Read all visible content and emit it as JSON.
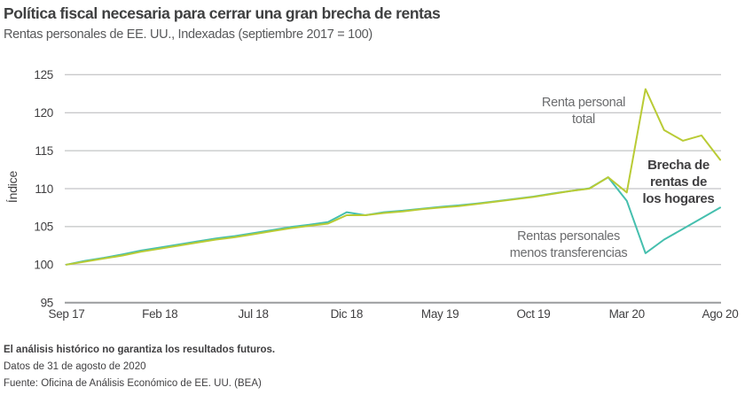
{
  "header": {
    "title": "Política fiscal necesaria para cerrar una gran brecha de rentas",
    "subtitle": "Rentas personales de EE. UU., Indexadas (septiembre 2017 = 100)"
  },
  "chart_data": {
    "type": "line",
    "ylabel": "Índice",
    "ylim": [
      95,
      125
    ],
    "yticks": [
      95,
      100,
      105,
      110,
      115,
      120,
      125
    ],
    "x_tick_labels": [
      "Sep 17",
      "Feb 18",
      "Jul 18",
      "Dic 18",
      "May 19",
      "Oct 19",
      "Mar 20",
      "Ago 20"
    ],
    "x_tick_months": [
      0,
      5,
      10,
      15,
      20,
      25,
      30,
      35
    ],
    "x": [
      "Sep 17",
      "Oct 17",
      "Nov 17",
      "Dic 17",
      "Ene 18",
      "Feb 18",
      "Mar 18",
      "Abr 18",
      "May 18",
      "Jun 18",
      "Jul 18",
      "Ago 18",
      "Sep 18",
      "Oct 18",
      "Nov 18",
      "Dic 18",
      "Ene 19",
      "Feb 19",
      "Mar 19",
      "Abr 19",
      "May 19",
      "Jun 19",
      "Jul 19",
      "Ago 19",
      "Sep 19",
      "Oct 19",
      "Nov 19",
      "Dic 19",
      "Ene 20",
      "Feb 20",
      "Mar 20",
      "Abr 20",
      "May 20",
      "Jun 20",
      "Jul 20",
      "Ago 20"
    ],
    "series": [
      {
        "name": "Rentas personales menos transferencias",
        "color": "#45bfae",
        "values": [
          100,
          100.5,
          100.9,
          101.35,
          101.85,
          102.25,
          102.65,
          103.05,
          103.45,
          103.75,
          104.15,
          104.55,
          104.95,
          105.25,
          105.6,
          106.9,
          106.5,
          106.9,
          107.1,
          107.35,
          107.6,
          107.8,
          108.05,
          108.35,
          108.65,
          108.95,
          109.35,
          109.7,
          110.05,
          111.5,
          108.4,
          101.5,
          103.3,
          104.7,
          106.1,
          107.5
        ]
      },
      {
        "name": "Renta personal total",
        "color": "#b9cb35",
        "values": [
          100,
          100.4,
          100.8,
          101.2,
          101.7,
          102.1,
          102.5,
          102.9,
          103.3,
          103.6,
          104.0,
          104.4,
          104.8,
          105.1,
          105.4,
          106.5,
          106.5,
          106.8,
          107.0,
          107.3,
          107.5,
          107.7,
          108.0,
          108.3,
          108.6,
          108.9,
          109.3,
          109.7,
          110.0,
          111.5,
          109.5,
          123.1,
          117.7,
          116.3,
          117.0,
          113.8
        ]
      }
    ],
    "grid": true,
    "legend_position": "inline-annotations",
    "colors": {
      "gridline": "#b5b6b8",
      "baseline": "#9a9c9e",
      "total_line": "#b9cb35",
      "transfers_line": "#45bfae"
    }
  },
  "annotations": {
    "total_label": "Renta personal\ntotal",
    "gap_label": "Brecha de\nrentas de\nlos hogares",
    "transfers_label": "Rentas personales\nmenos transferencias"
  },
  "footer": {
    "disclaimer": "El análisis histórico no garantiza los resultados futuros.",
    "as_of": "Datos de 31 de agosto de 2020",
    "source": "Fuente: Oficina de Análisis Económico de EE. UU. (BEA)"
  }
}
